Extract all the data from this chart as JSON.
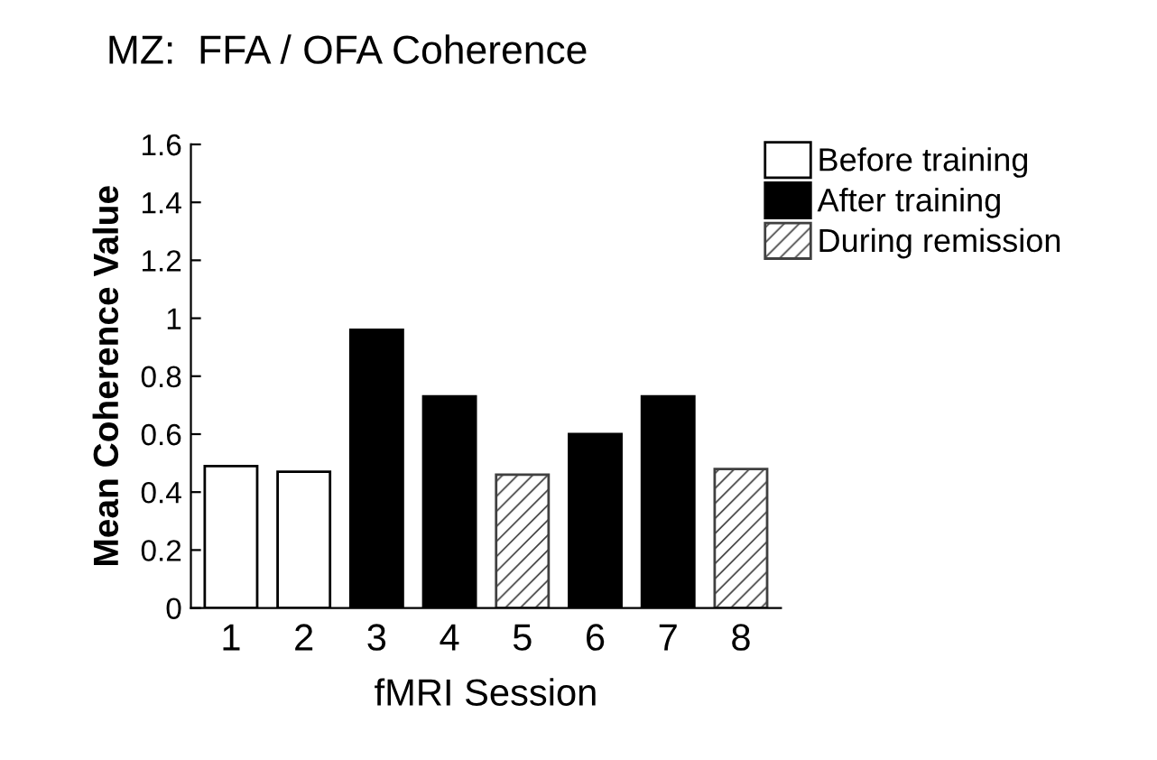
{
  "chart_data": {
    "type": "bar",
    "title": "MZ:  FFA / OFA Coherence",
    "xlabel": "fMRI Session",
    "ylabel": "Mean Coherence Value",
    "categories": [
      "1",
      "2",
      "3",
      "4",
      "5",
      "6",
      "7",
      "8"
    ],
    "series": [
      {
        "name": "Before training",
        "color": "#ffffff",
        "values": [
          0.49,
          0.47,
          null,
          null,
          null,
          null,
          null,
          null
        ]
      },
      {
        "name": "After training",
        "color": "#000000",
        "values": [
          null,
          null,
          0.96,
          0.73,
          null,
          0.6,
          0.73,
          null
        ]
      },
      {
        "name": "During remission",
        "color": "#404040",
        "values": [
          null,
          null,
          null,
          null,
          0.46,
          null,
          null,
          0.48
        ]
      }
    ],
    "ylim": [
      0,
      1.6
    ],
    "yticks": [
      0,
      0.2,
      0.4,
      0.6,
      0.8,
      1,
      1.2,
      1.4,
      1.6
    ],
    "grid": false,
    "legend": "top right"
  }
}
